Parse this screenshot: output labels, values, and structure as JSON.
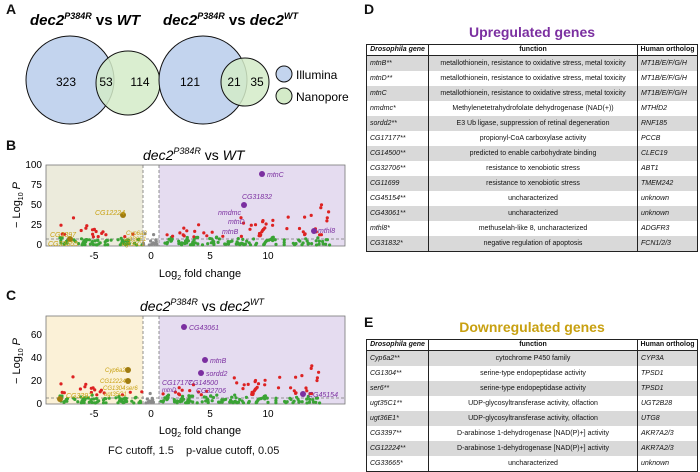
{
  "panels": {
    "a": "A",
    "b": "B",
    "c": "C",
    "d": "D",
    "e": "E"
  },
  "venn": {
    "left": {
      "title_main": "dec2",
      "title_sup": "P384R",
      "title_rest": " vs ",
      "title_ref": "WT",
      "title_ref_sup": "",
      "illumina_only": "323",
      "overlap": "53",
      "nanopore_only": "114"
    },
    "right": {
      "title_main": "dec2",
      "title_sup": "P384R",
      "title_rest": " vs ",
      "title_ref": "dec2",
      "title_ref_sup": "WT",
      "illumina_only": "121",
      "overlap": "21",
      "nanopore_only": "35"
    },
    "legend": [
      {
        "label": "Illumina",
        "color": "#c3d4ee"
      },
      {
        "label": "Nanopore",
        "color": "#d4ebc8"
      }
    ]
  },
  "volcano_b": {
    "title_main": "dec2",
    "title_sup": "P384R",
    "title_rest": " vs ",
    "title_ref": "WT",
    "title_ref_sup": "",
    "xlabel_main": "Log",
    "xlabel_sub": "2",
    "xlabel_rest": " fold change",
    "ylabel_pre": "− Log",
    "ylabel_sub": "10",
    "ylabel_var": " P",
    "yticks": [
      "0",
      "25",
      "50",
      "75",
      "100"
    ],
    "xticks": [
      "-5",
      "0",
      "5",
      "10"
    ],
    "labels": {
      "up": [
        "mtnC",
        "CG31832",
        "nmdmc",
        "mtnD",
        "mtnB",
        "mthl8"
      ],
      "down": [
        "CG12224",
        "CG3397",
        "CG33665",
        "Cyp6a2",
        "ugt36E1",
        "ugt35C1"
      ]
    }
  },
  "volcano_c": {
    "title_main": "dec2",
    "title_sup": "P384R",
    "title_rest": " vs ",
    "title_ref": "dec2",
    "title_ref_sup": "WT",
    "xlabel_main": "Log",
    "xlabel_sub": "2",
    "xlabel_rest": " fold change",
    "ylabel_pre": "− Log",
    "ylabel_sub": "10",
    "ylabel_var": " P",
    "yticks": [
      "0",
      "20",
      "40",
      "60"
    ],
    "xticks": [
      "-5",
      "0",
      "5",
      "10"
    ],
    "labels": {
      "up": [
        "CG43061",
        "mtnB",
        "sordd2",
        "CG14500",
        "CG32706",
        "CG17177",
        "mtnD",
        "CG45154"
      ],
      "down": [
        "Cyp6a2",
        "CG12224",
        "CG1304",
        "ser6",
        "ugt35C1",
        "CG3397"
      ]
    }
  },
  "footer": "FC cutoff, 1.5    p-value cutoff, 0.05",
  "upregulated": {
    "title": "Upregulated genes",
    "title_color": "#7b2fa0",
    "headers": [
      "Drosophila gene",
      "function",
      "Human ortholog"
    ],
    "rows": [
      {
        "gene": "mtnB**",
        "func": "metallothionein, resistance to oxidative stress, metal toxicity",
        "ortho": "MT1B/E/F/G/H"
      },
      {
        "gene": "mtnD**",
        "func": "metallothionein, resistance to oxidative stress, metal toxicity",
        "ortho": "MT1B/E/F/G/H"
      },
      {
        "gene": "mtnC",
        "func": "metallothionein, resistance to oxidative stress, metal toxicity",
        "ortho": "MT1B/E/F/G/H"
      },
      {
        "gene": "nmdmc*",
        "func": "Methylenetetrahydrofolate dehydrogenase (NAD(+))",
        "ortho": "MTHfD2"
      },
      {
        "gene": "sordd2**",
        "func": "E3 Ub ligase, suppression of retinal degeneration",
        "ortho": "RNF185"
      },
      {
        "gene": "CG17177**",
        "func": "propionyl-CoA carboxylase activity",
        "ortho": "PCCB"
      },
      {
        "gene": "CG14500**",
        "func": "predicted to enable carbohydrate binding",
        "ortho": "CLEC19"
      },
      {
        "gene": "CG32706**",
        "func": "resistance to xenobiotic stress",
        "ortho": "ABT1"
      },
      {
        "gene": "CG11699",
        "func": "resistance to xenobiotic stress",
        "ortho": "TMEM242"
      },
      {
        "gene": "CG45154**",
        "func": "uncharacterized",
        "ortho": "unknown"
      },
      {
        "gene": "CG43061**",
        "func": "uncharacterized",
        "ortho": "unknown"
      },
      {
        "gene": "mthl8*",
        "func": "methuselah-like 8, uncharacterized",
        "ortho": "ADGFR3"
      },
      {
        "gene": "CG31832*",
        "func": "negative regulation of apoptosis",
        "ortho": "FCN1/2/3"
      }
    ]
  },
  "downregulated": {
    "title": "Downregulated genes",
    "title_color": "#c8a010",
    "headers": [
      "Drosophila gene",
      "function",
      "Human ortholog"
    ],
    "rows": [
      {
        "gene": "Cyp6a2**",
        "func": "cytochrome P450 family",
        "ortho": "CYP3A"
      },
      {
        "gene": "CG1304**",
        "func": "serine-type endopeptidase activity",
        "ortho": "TPSD1"
      },
      {
        "gene": "ser6**",
        "func": "serine-type endopeptidase activity",
        "ortho": "TPSD1"
      },
      {
        "gene": "ugt35C1**",
        "func": "UDP-glycosyltransferase activity, olfaction",
        "ortho": "UGT2B28"
      },
      {
        "gene": "ugt36E1*",
        "func": "UDP-glycosyltransferase activity, olfaction",
        "ortho": "UTG8"
      },
      {
        "gene": "CG3397**",
        "func": "D-arabinose 1-dehydrogenase [NAD(P)+] activity",
        "ortho": "AKR7A2/3"
      },
      {
        "gene": "CG12224**",
        "func": "D-arabinose 1-dehydrogenase [NAD(P)+] activity",
        "ortho": "AKR7A2/3"
      },
      {
        "gene": "CG33665*",
        "func": "uncharacterized",
        "ortho": "unknown"
      }
    ]
  }
}
